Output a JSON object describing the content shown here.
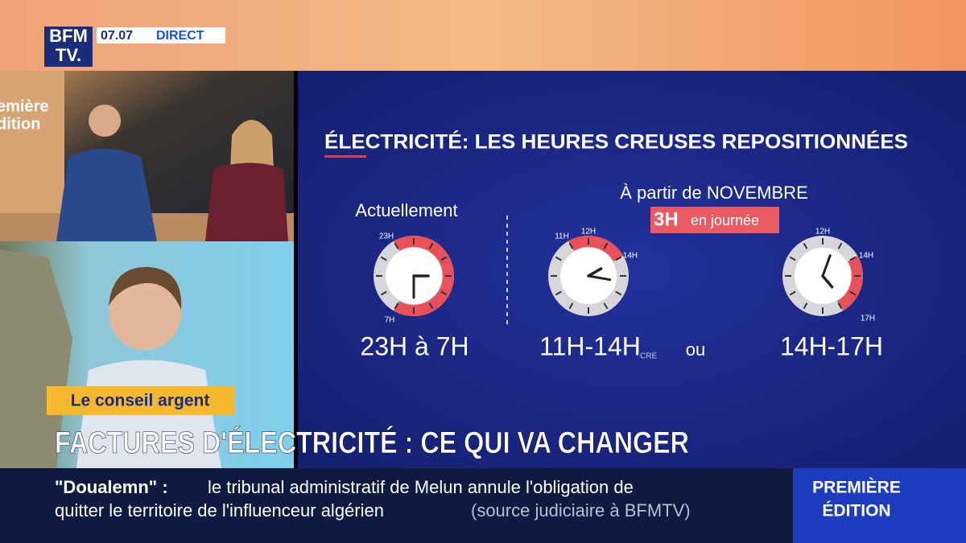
{
  "channel": {
    "logo_top": "BFM",
    "logo_bottom": "TV.",
    "time": "07.07",
    "live": "DIRECT"
  },
  "studio_sign": {
    "line1": "emière",
    "line2": "dition"
  },
  "panel": {
    "title": "ÉLECTRICITÉ:  LES HEURES CREUSES REPOSITIONNÉES",
    "current_label": "Actuellement",
    "future_label": "À partir de NOVEMBRE",
    "future_badge_hours": "3H",
    "future_badge_text": "en journée",
    "clocks": [
      {
        "start": "23H",
        "end": "7H",
        "caption": "23H à 7H"
      },
      {
        "top": "12H",
        "start": "11H",
        "end": "14H",
        "caption": "11H-14H"
      },
      {
        "top": "12H",
        "start": "14H",
        "end": "17H",
        "caption": "14H-17H"
      }
    ],
    "or": "ou",
    "source": "CRE"
  },
  "segment": "Le conseil argent",
  "headline": "FACTURES D'ÉLECTRICITÉ : CE QUI VA CHANGER",
  "ticker": {
    "tag": "\"Doualemn\" :",
    "line1": "le tribunal administratif de Melun annule l'obligation de",
    "line2": "quitter le territoire de l'influenceur algérien",
    "source": "(source judiciaire à BFMTV)"
  },
  "show": {
    "line1": "PREMIÈRE",
    "line2": "ÉDITION"
  }
}
